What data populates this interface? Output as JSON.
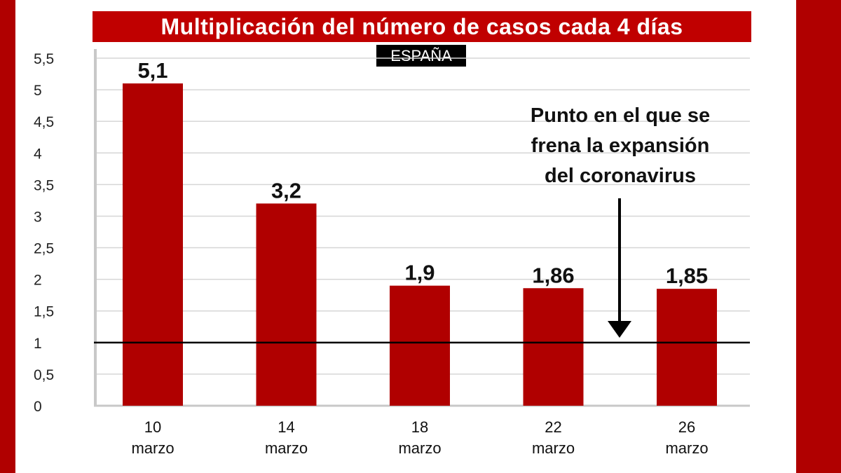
{
  "title": "Multiplicación del número de casos cada 4 días",
  "subtitle": "ESPAÑA",
  "annotation": [
    "Punto en el que se",
    "frena la expansión",
    "del coronavirus"
  ],
  "colors": {
    "bar": "#b00000",
    "frame": "#b00000",
    "title_bg": "#c00000"
  },
  "chart_data": {
    "type": "bar",
    "categories": [
      "10 marzo",
      "14 marzo",
      "18 marzo",
      "22 marzo",
      "26 marzo"
    ],
    "category_lines": [
      [
        "10",
        "marzo"
      ],
      [
        "14",
        "marzo"
      ],
      [
        "18",
        "marzo"
      ],
      [
        "22",
        "marzo"
      ],
      [
        "26",
        "marzo"
      ]
    ],
    "values": [
      5.1,
      3.2,
      1.9,
      1.86,
      1.85
    ],
    "value_labels": [
      "5,1",
      "3,2",
      "1,9",
      "1,86",
      "1,85"
    ],
    "yticks": [
      0,
      0.5,
      1,
      1.5,
      2,
      2.5,
      3,
      3.5,
      4,
      4.5,
      5,
      5.5
    ],
    "ytick_labels": [
      "0",
      "0,5",
      "1",
      "1,5",
      "2",
      "2,5",
      "3",
      "3,5",
      "4",
      "4,5",
      "5",
      "5,5"
    ],
    "ylim": [
      0,
      5.5
    ],
    "reference_line": 1,
    "grid": true,
    "legend": "none"
  }
}
